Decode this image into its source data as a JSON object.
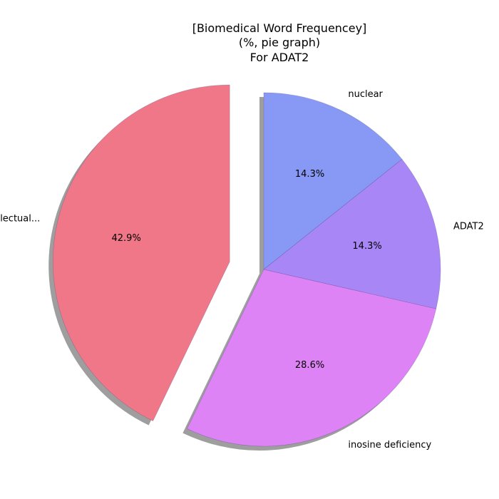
{
  "chart_data": {
    "type": "pie",
    "title": [
      "[Biomedical Word Frequencey]",
      "(%, pie graph)",
      "For ADAT2"
    ],
    "slices": [
      {
        "label": "nuclear",
        "value": 14.3,
        "pct_label": "14.3%",
        "color": "#8799f5",
        "exploded": false
      },
      {
        "label": "ADAT2",
        "value": 14.3,
        "pct_label": "14.3%",
        "color": "#a986f5",
        "exploded": false
      },
      {
        "label": "inosine deficiency",
        "value": 28.6,
        "pct_label": "28.6%",
        "color": "#de83f5",
        "exploded": false
      },
      {
        "label": "intellectual...",
        "value": 42.9,
        "pct_label": "42.9%",
        "color": "#f07788",
        "exploded": true
      }
    ],
    "start_angle_deg": 90,
    "direction": "clockwise",
    "shadow": true,
    "legend": "none"
  }
}
